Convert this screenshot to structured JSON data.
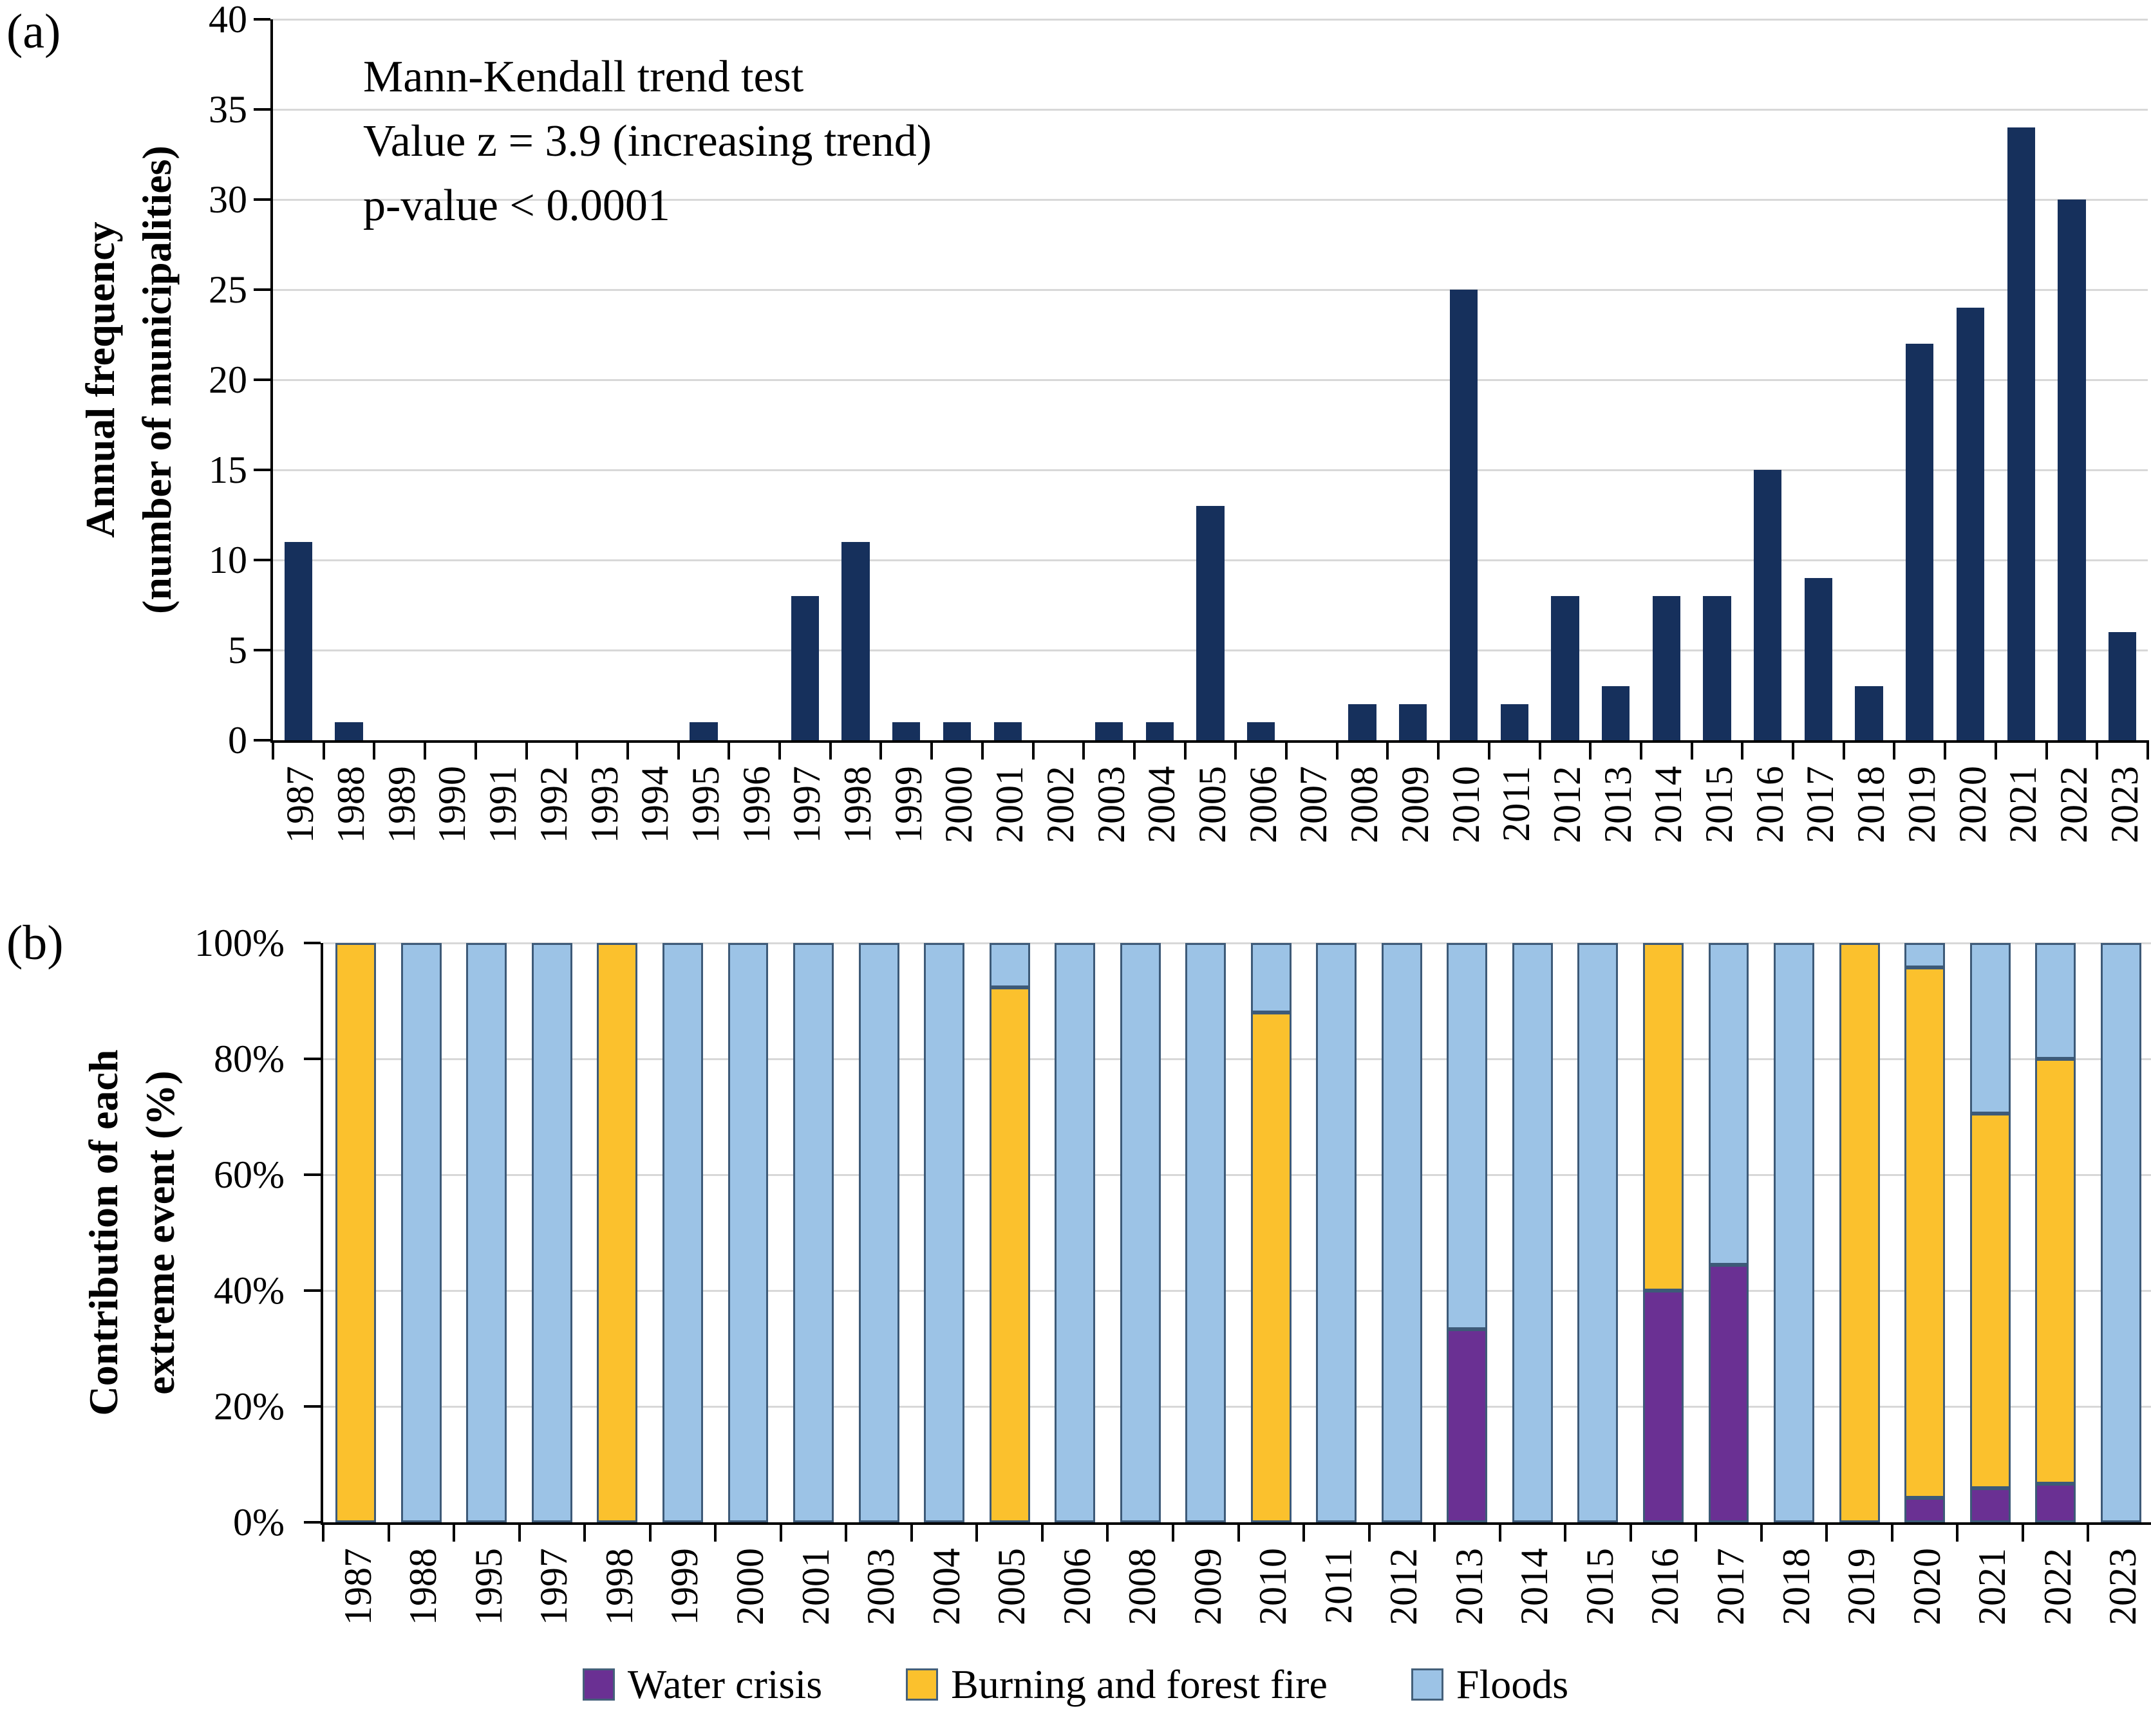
{
  "panel_a": {
    "tag": "(a)",
    "ylabel_lines": [
      "Annual frequency",
      "(number of municipalities)"
    ],
    "annotation_lines": [
      "Mann-Kendall trend test",
      "Value z = 3.9 (increasing trend)",
      "p-value < 0.0001"
    ],
    "ytick_labels": [
      "0",
      "5",
      "10",
      "15",
      "20",
      "25",
      "30",
      "35",
      "40"
    ]
  },
  "panel_b": {
    "tag": "(b)",
    "ylabel_lines": [
      "Contribution of each",
      "extreme event (%)"
    ],
    "ytick_labels": [
      "0%",
      "20%",
      "40%",
      "60%",
      "80%",
      "100%"
    ]
  },
  "legend": {
    "items": [
      {
        "label": "Water crisis",
        "color": "#6A3093"
      },
      {
        "label": "Burning and forest fire",
        "color": "#FBC12D"
      },
      {
        "label": "Floods",
        "color": "#9CC3E6"
      }
    ]
  },
  "colors": {
    "annual_bar": "#16305C",
    "water_crisis": "#6A3093",
    "burning_forest_fire": "#FBC12D",
    "floods": "#9CC3E6",
    "bar_outline": "#3D5A78",
    "gridline": "#D8D8D8"
  },
  "chart_data": [
    {
      "id": "annual-frequency",
      "type": "bar",
      "title": "Annual frequency of extreme events (Mann-Kendall trend test: z = 3.9, increasing trend, p-value < 0.0001)",
      "xlabel": "",
      "ylabel": "Annual frequency (number of municipalities)",
      "ylim": [
        0,
        40
      ],
      "ytick_step": 5,
      "grid": true,
      "bar_color": "#16305C",
      "categories": [
        "1987",
        "1988",
        "1989",
        "1990",
        "1991",
        "1992",
        "1993",
        "1994",
        "1995",
        "1996",
        "1997",
        "1998",
        "1999",
        "2000",
        "2001",
        "2002",
        "2003",
        "2004",
        "2005",
        "2006",
        "2007",
        "2008",
        "2009",
        "2010",
        "2011",
        "2012",
        "2013",
        "2014",
        "2015",
        "2016",
        "2017",
        "2018",
        "2019",
        "2020",
        "2021",
        "2022",
        "2023"
      ],
      "values": [
        11,
        1,
        0,
        0,
        0,
        0,
        0,
        0,
        1,
        0,
        8,
        11,
        1,
        1,
        1,
        0,
        1,
        1,
        13,
        1,
        0,
        2,
        2,
        25,
        2,
        8,
        3,
        8,
        8,
        15,
        9,
        3,
        22,
        24,
        34,
        30,
        6
      ]
    },
    {
      "id": "contribution-by-event",
      "type": "bar",
      "stacked": "percent",
      "title": "Contribution of each extreme event (%)",
      "xlabel": "",
      "ylabel": "Contribution of each extreme event (%)",
      "ylim": [
        0,
        100
      ],
      "ytick_step": 20,
      "grid": true,
      "legend_position": "bottom",
      "bar_outline": "#3D5A78",
      "categories": [
        "1987",
        "1988",
        "1995",
        "1997",
        "1998",
        "1999",
        "2000",
        "2001",
        "2003",
        "2004",
        "2005",
        "2006",
        "2008",
        "2009",
        "2010",
        "2011",
        "2012",
        "2013",
        "2014",
        "2015",
        "2016",
        "2017",
        "2018",
        "2019",
        "2020",
        "2021",
        "2022",
        "2023"
      ],
      "series": [
        {
          "name": "Water crisis",
          "color": "#6A3093",
          "values": [
            0,
            0,
            0,
            0,
            0,
            0,
            0,
            0,
            0,
            0,
            0,
            0,
            0,
            0,
            0,
            0,
            0,
            33.3,
            0,
            0,
            40,
            44.4,
            0,
            0,
            4.2,
            5.9,
            6.7,
            0
          ]
        },
        {
          "name": "Burning and forest fire",
          "color": "#FBC12D",
          "values": [
            100,
            0,
            0,
            0,
            100,
            0,
            0,
            0,
            0,
            0,
            92.3,
            0,
            0,
            0,
            88,
            0,
            0,
            0,
            0,
            0,
            60,
            0,
            0,
            100,
            91.6,
            64.7,
            73.3,
            0
          ]
        },
        {
          "name": "Floods",
          "color": "#9CC3E6",
          "values": [
            0,
            100,
            100,
            100,
            0,
            100,
            100,
            100,
            100,
            100,
            7.7,
            100,
            100,
            100,
            12,
            100,
            100,
            66.7,
            100,
            100,
            0,
            55.6,
            100,
            0,
            4.2,
            29.4,
            20,
            100
          ]
        }
      ]
    }
  ]
}
